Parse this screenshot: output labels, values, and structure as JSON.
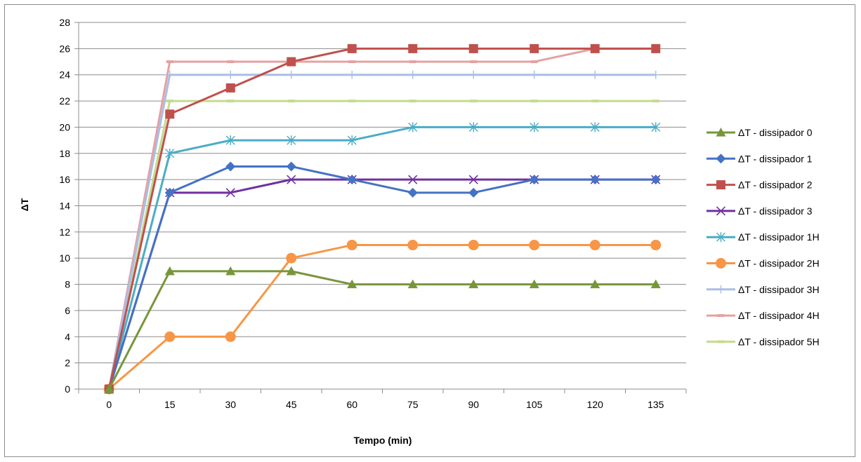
{
  "chart_data": {
    "type": "line",
    "xlabel": "Tempo (min)",
    "ylabel": "ΔT",
    "categories": [
      "0",
      "15",
      "30",
      "45",
      "60",
      "75",
      "90",
      "105",
      "120",
      "135"
    ],
    "ylim": [
      0,
      28
    ],
    "ytick_step": 2,
    "grid": true,
    "legend_position": "right",
    "series": [
      {
        "name": "ΔT - dissipador 0",
        "color": "#77963a",
        "marker": "triangle",
        "values": [
          0,
          9,
          9,
          9,
          8,
          8,
          8,
          8,
          8,
          8
        ]
      },
      {
        "name": "ΔT - dissipador 1",
        "color": "#4472c4",
        "marker": "diamond",
        "values": [
          0,
          15,
          17,
          17,
          16,
          15,
          15,
          16,
          16,
          16
        ]
      },
      {
        "name": "ΔT - dissipador 2",
        "color": "#c0504d",
        "marker": "square",
        "values": [
          0,
          21,
          23,
          25,
          26,
          26,
          26,
          26,
          26,
          26
        ]
      },
      {
        "name": "ΔT - dissipador 3",
        "color": "#7030a0",
        "marker": "x",
        "values": [
          0,
          15,
          15,
          16,
          16,
          16,
          16,
          16,
          16,
          16
        ]
      },
      {
        "name": "ΔT - dissipador 1H",
        "color": "#4aacc6",
        "marker": "star",
        "values": [
          0,
          18,
          19,
          19,
          19,
          20,
          20,
          20,
          20,
          20
        ]
      },
      {
        "name": "ΔT - dissipador 2H",
        "color": "#f79646",
        "marker": "circle",
        "values": [
          0,
          4,
          4,
          10,
          11,
          11,
          11,
          11,
          11,
          11
        ]
      },
      {
        "name": "ΔT - dissipador 3H",
        "color": "#a9bee6",
        "marker": "plus",
        "values": [
          0,
          24,
          24,
          24,
          24,
          24,
          24,
          24,
          24,
          24
        ]
      },
      {
        "name": "ΔT - dissipador 4H",
        "color": "#e6a0a0",
        "marker": "dash",
        "values": [
          0,
          25,
          25,
          25,
          25,
          25,
          25,
          25,
          26,
          26
        ]
      },
      {
        "name": "ΔT - dissipador 5H",
        "color": "#c3dc8c",
        "marker": "dash",
        "values": [
          0,
          22,
          22,
          22,
          22,
          22,
          22,
          22,
          22,
          22
        ]
      }
    ]
  }
}
